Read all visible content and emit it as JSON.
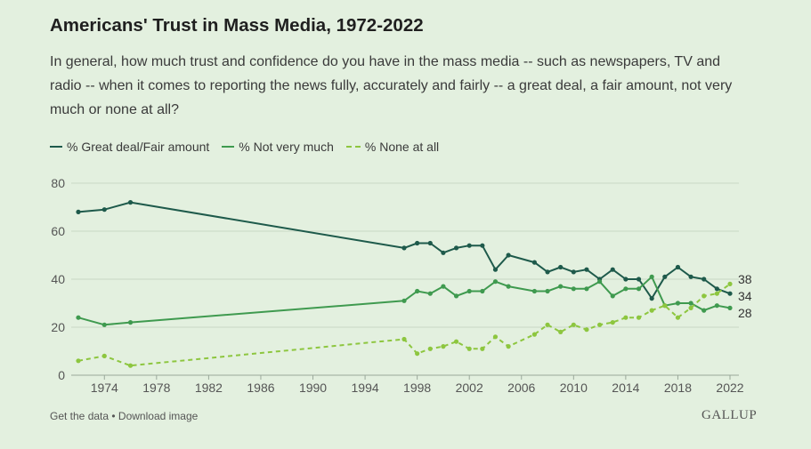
{
  "title": "Americans' Trust in Mass Media, 1972-2022",
  "subtitle": "In general, how much trust and confidence do you have in the mass media -- such as newspapers, TV and radio -- when it comes to reporting the news fully, accurately and fairly -- a great deal, a fair amount, not very much or none at all?",
  "legend": {
    "great_deal": "% Great deal/Fair amount",
    "not_very_much": "% Not very much",
    "none_at_all": "% None at all"
  },
  "footer": {
    "get_data": "Get the data",
    "separator": " • ",
    "download": "Download image",
    "brand": "GALLUP"
  },
  "colors": {
    "great_deal": "#1e5a4b",
    "not_very_much": "#3f9a4f",
    "none_at_all": "#8dc63f",
    "grid": "#c9d9c5",
    "axis_text": "#555555"
  },
  "chart_data": {
    "type": "line",
    "xlim": [
      1972,
      2022
    ],
    "ylim": [
      0,
      80
    ],
    "x_ticks": [
      1974,
      1978,
      1982,
      1986,
      1990,
      1994,
      1998,
      2002,
      2006,
      2010,
      2014,
      2018,
      2022
    ],
    "y_ticks": [
      0,
      20,
      40,
      60,
      80
    ],
    "grid": true,
    "legend_position": "top-left",
    "series": [
      {
        "name": "% Great deal/Fair amount",
        "key": "great_deal",
        "style": "solid",
        "x": [
          1972,
          1974,
          1976,
          1997,
          1998,
          1999,
          2000,
          2001,
          2002,
          2003,
          2004,
          2005,
          2007,
          2008,
          2009,
          2010,
          2011,
          2012,
          2013,
          2014,
          2015,
          2016,
          2017,
          2018,
          2019,
          2020,
          2021,
          2022
        ],
        "values": [
          68,
          69,
          72,
          53,
          55,
          55,
          51,
          53,
          54,
          54,
          44,
          50,
          47,
          43,
          45,
          43,
          44,
          40,
          44,
          40,
          40,
          32,
          41,
          45,
          41,
          40,
          36,
          34
        ]
      },
      {
        "name": "% Not very much",
        "key": "not_very_much",
        "style": "solid",
        "x": [
          1972,
          1974,
          1976,
          1997,
          1998,
          1999,
          2000,
          2001,
          2002,
          2003,
          2004,
          2005,
          2007,
          2008,
          2009,
          2010,
          2011,
          2012,
          2013,
          2014,
          2015,
          2016,
          2017,
          2018,
          2019,
          2020,
          2021,
          2022
        ],
        "values": [
          24,
          21,
          22,
          31,
          35,
          34,
          37,
          33,
          35,
          35,
          39,
          37,
          35,
          35,
          37,
          36,
          36,
          39,
          33,
          36,
          36,
          41,
          29,
          30,
          30,
          27,
          29,
          28
        ]
      },
      {
        "name": "% None at all",
        "key": "none_at_all",
        "style": "dashed",
        "x": [
          1972,
          1974,
          1976,
          1997,
          1998,
          1999,
          2000,
          2001,
          2002,
          2003,
          2004,
          2005,
          2007,
          2008,
          2009,
          2010,
          2011,
          2012,
          2013,
          2014,
          2015,
          2016,
          2017,
          2018,
          2019,
          2020,
          2021,
          2022
        ],
        "values": [
          6,
          8,
          4,
          15,
          9,
          11,
          12,
          14,
          11,
          11,
          16,
          12,
          17,
          21,
          18,
          21,
          19,
          21,
          22,
          24,
          24,
          27,
          29,
          24,
          28,
          33,
          34,
          38
        ]
      }
    ],
    "end_labels": [
      "38",
      "34",
      "28"
    ]
  }
}
